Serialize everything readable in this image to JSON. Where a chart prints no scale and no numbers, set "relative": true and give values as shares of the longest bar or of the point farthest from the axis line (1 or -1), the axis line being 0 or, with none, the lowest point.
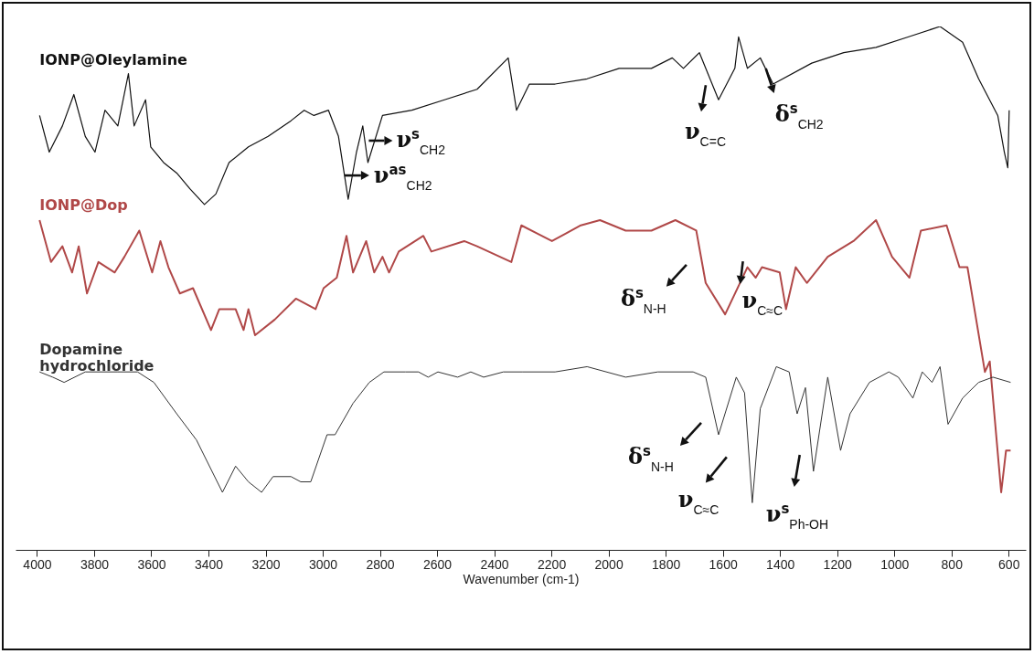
{
  "chart_data": {
    "type": "line",
    "relative": true,
    "xlabel": "Wavenumber (cm-1)",
    "xlim": [
      4075,
      540
    ],
    "xticks": [
      4000,
      3800,
      3600,
      3400,
      3200,
      3000,
      2800,
      2600,
      2400,
      2200,
      2000,
      1800,
      1600,
      1400,
      1200,
      1000,
      800,
      600
    ],
    "grid": false,
    "series": [
      {
        "name": "IONP@Oleylamine",
        "color": "#111111",
        "x": [
          3991,
          3957,
          3911,
          3871,
          3831,
          3797,
          3762,
          3717,
          3680,
          3660,
          3620,
          3602,
          3557,
          3511,
          3465,
          3414,
          3374,
          3328,
          3260,
          3191,
          3111,
          3065,
          3031,
          2980,
          2945,
          2911,
          2882,
          2860,
          2842,
          2791,
          2688,
          2574,
          2460,
          2351,
          2322,
          2277,
          2187,
          2075,
          1963,
          1850,
          1777,
          1738,
          1682,
          1615,
          1558,
          1545,
          1514,
          1469,
          1424,
          1289,
          1177,
          1064,
          952,
          840,
          761,
          705,
          638,
          615,
          603,
          598
        ],
        "values": [
          0.83,
          0.76,
          0.81,
          0.87,
          0.79,
          0.76,
          0.84,
          0.81,
          0.91,
          0.81,
          0.86,
          0.77,
          0.74,
          0.72,
          0.69,
          0.66,
          0.68,
          0.74,
          0.77,
          0.79,
          0.82,
          0.84,
          0.83,
          0.84,
          0.79,
          0.67,
          0.76,
          0.81,
          0.74,
          0.83,
          0.84,
          0.86,
          0.88,
          0.94,
          0.84,
          0.89,
          0.89,
          0.9,
          0.92,
          0.92,
          0.94,
          0.92,
          0.95,
          0.86,
          0.92,
          0.98,
          0.92,
          0.94,
          0.89,
          0.93,
          0.95,
          0.96,
          0.98,
          1.0,
          0.97,
          0.9,
          0.83,
          0.76,
          0.73,
          0.84
        ]
      },
      {
        "name": "IONP@Dop",
        "color": "#b04848",
        "x": [
          3991,
          3951,
          3911,
          3877,
          3854,
          3825,
          3785,
          3728,
          3694,
          3642,
          3597,
          3568,
          3540,
          3500,
          3454,
          3391,
          3362,
          3305,
          3277,
          3260,
          3237,
          3168,
          3094,
          3025,
          2997,
          2951,
          2917,
          2894,
          2848,
          2820,
          2791,
          2768,
          2734,
          2648,
          2620,
          2505,
          2460,
          2340,
          2305,
          2198,
          2097,
          2030,
          1940,
          1850,
          1766,
          1693,
          1660,
          1592,
          1514,
          1485,
          1463,
          1401,
          1379,
          1345,
          1306,
          1233,
          1143,
          1064,
          1008,
          947,
          907,
          817,
          772,
          744,
          683,
          666,
          626,
          609,
          593
        ],
        "values": [
          0.63,
          0.55,
          0.58,
          0.53,
          0.58,
          0.49,
          0.55,
          0.53,
          0.56,
          0.61,
          0.53,
          0.59,
          0.54,
          0.49,
          0.5,
          0.42,
          0.46,
          0.46,
          0.42,
          0.46,
          0.41,
          0.44,
          0.48,
          0.46,
          0.5,
          0.52,
          0.6,
          0.53,
          0.59,
          0.53,
          0.56,
          0.53,
          0.57,
          0.6,
          0.57,
          0.59,
          0.58,
          0.55,
          0.62,
          0.59,
          0.62,
          0.63,
          0.61,
          0.61,
          0.63,
          0.61,
          0.51,
          0.45,
          0.54,
          0.52,
          0.54,
          0.53,
          0.46,
          0.54,
          0.51,
          0.56,
          0.59,
          0.63,
          0.56,
          0.52,
          0.61,
          0.62,
          0.54,
          0.54,
          0.34,
          0.36,
          0.11,
          0.19,
          0.19
        ]
      },
      {
        "name": "Dopamine hydrochloride",
        "color": "#333333",
        "x": [
          3991,
          3945,
          3905,
          3831,
          3717,
          3648,
          3591,
          3511,
          3442,
          3351,
          3305,
          3260,
          3214,
          3174,
          3111,
          3077,
          3042,
          2985,
          2957,
          2894,
          2837,
          2786,
          2711,
          2665,
          2631,
          2597,
          2528,
          2482,
          2437,
          2368,
          2300,
          2187,
          2075,
          1940,
          1828,
          1704,
          1660,
          1615,
          1553,
          1524,
          1497,
          1469,
          1413,
          1368,
          1340,
          1311,
          1283,
          1233,
          1188,
          1155,
          1087,
          1019,
          986,
          935,
          902,
          868,
          840,
          812,
          761,
          705,
          655,
          593
        ],
        "values": [
          0.34,
          0.33,
          0.32,
          0.34,
          0.34,
          0.34,
          0.32,
          0.26,
          0.21,
          0.11,
          0.16,
          0.13,
          0.11,
          0.14,
          0.14,
          0.13,
          0.13,
          0.22,
          0.22,
          0.28,
          0.32,
          0.34,
          0.34,
          0.34,
          0.33,
          0.34,
          0.33,
          0.34,
          0.33,
          0.34,
          0.34,
          0.34,
          0.35,
          0.33,
          0.34,
          0.34,
          0.33,
          0.22,
          0.33,
          0.3,
          0.09,
          0.27,
          0.35,
          0.34,
          0.26,
          0.31,
          0.15,
          0.33,
          0.19,
          0.26,
          0.32,
          0.34,
          0.33,
          0.29,
          0.34,
          0.32,
          0.35,
          0.24,
          0.29,
          0.32,
          0.33,
          0.32
        ]
      }
    ],
    "annotations": [
      {
        "text": "ν$^{s}$$_{CH2}$",
        "x": 2842,
        "y": 0.74
      },
      {
        "text": "ν$^{as}$$_{CH2}$",
        "x": 2911,
        "y": 0.67
      },
      {
        "text": "ν$_{C=C}$",
        "x": 1615,
        "y": 0.86
      },
      {
        "text": "δ$^{s}$$_{CH2}$",
        "x": 1424,
        "y": 0.89
      },
      {
        "text": "δ$^{s}$$_{N-H}$",
        "x": 1660,
        "y": 0.51
      },
      {
        "text": "ν$_{C≈C}$",
        "x": 1485,
        "y": 0.52
      },
      {
        "text": "δ$^{s}$$_{N-H}$",
        "x": 1615,
        "y": 0.22
      },
      {
        "text": "ν$_{C≈C}$",
        "x": 1497,
        "y": 0.09
      },
      {
        "text": "ν$^{s}$$_{Ph-OH}$",
        "x": 1283,
        "y": 0.15
      }
    ]
  }
}
